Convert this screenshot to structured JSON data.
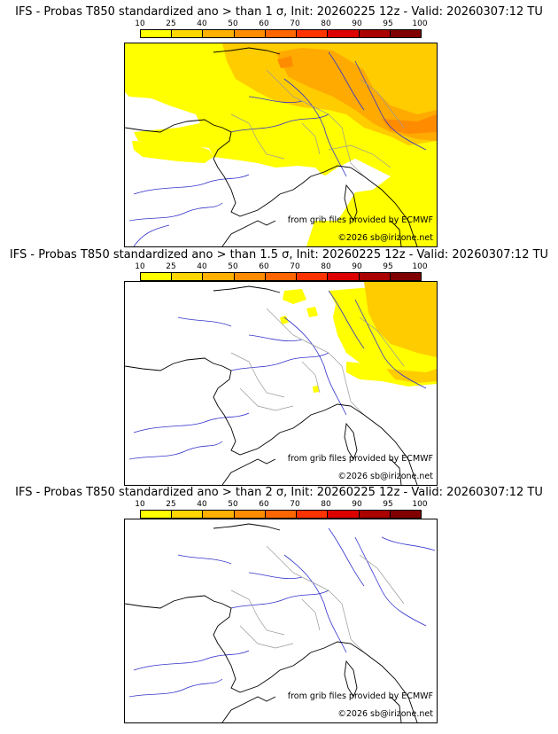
{
  "scale": {
    "labels": [
      "10",
      "25",
      "40",
      "50",
      "60",
      "70",
      "80",
      "90",
      "95",
      "100"
    ],
    "colors": [
      "#ffff00",
      "#ffd700",
      "#ffb000",
      "#ff8c00",
      "#ff6600",
      "#ff3300",
      "#dd0000",
      "#aa0000",
      "#800000"
    ]
  },
  "panels": [
    {
      "title": "IFS - Probas T850  standardized ano > than 1 σ, Init: 20260225 12z - Valid: 20260307:12 TU",
      "credit_source": "from grib files provided by ECMWF",
      "credit_copyright": "©2026 sb@irizone.net"
    },
    {
      "title": "IFS - Probas T850  standardized ano > than 1.5 σ, Init: 20260225 12z - Valid: 20260307:12 TU",
      "credit_source": "from grib files provided by ECMWF",
      "credit_copyright": "©2026 sb@irizone.net"
    },
    {
      "title": "IFS - Probas T850  standardized ano > than 2 σ, Init: 20260225 12z - Valid: 20260307:12 TU",
      "credit_source": "from grib files provided by ECMWF",
      "credit_copyright": "©2026 sb@irizone.net"
    }
  ],
  "colors": {
    "coastline": "#000000",
    "rivers": "#3333cc",
    "borders": "#999999",
    "prob_low": "#ffff00",
    "prob_mid": "#ffcc00",
    "prob_high": "#ffaa00"
  }
}
